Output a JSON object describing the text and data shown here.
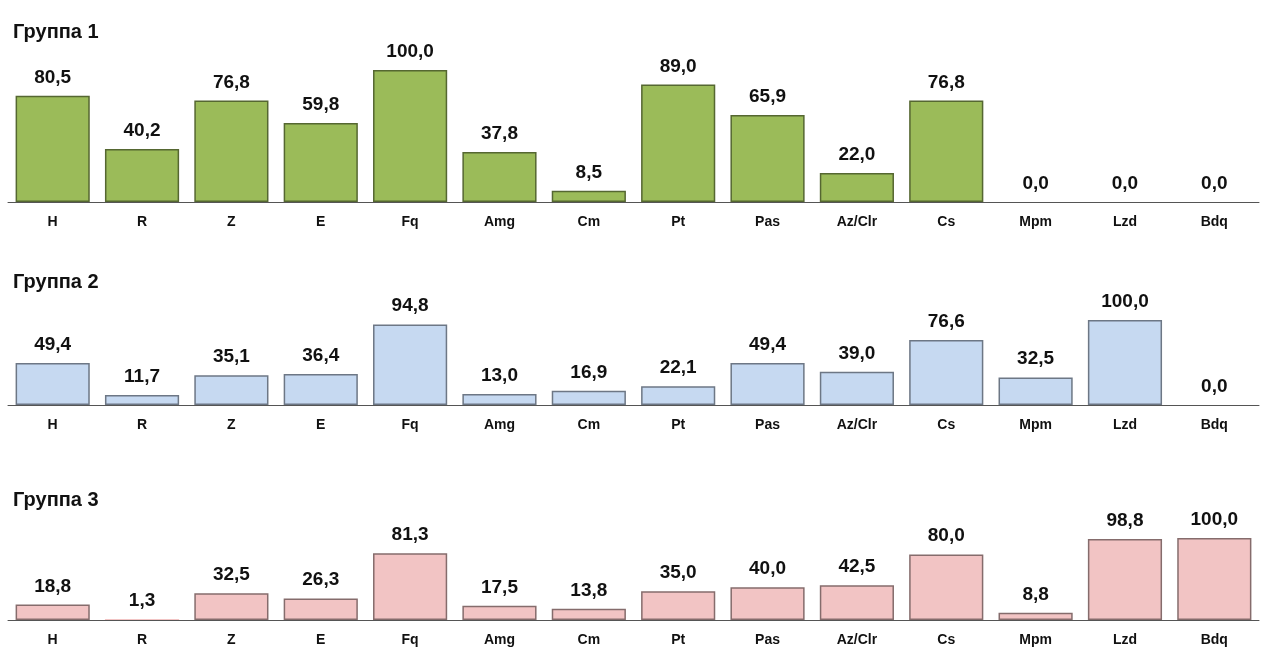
{
  "chart_data": [
    {
      "type": "bar",
      "title": "Группа 1",
      "categories": [
        "H",
        "R",
        "Z",
        "E",
        "Fq",
        "Amg",
        "Cm",
        "Pt",
        "Pas",
        "Az/Clr",
        "Cs",
        "Mpm",
        "Lzd",
        "Bdq"
      ],
      "values": [
        80.5,
        40.2,
        76.8,
        59.8,
        100.0,
        37.8,
        8.5,
        89.0,
        65.9,
        22.0,
        76.8,
        0.0,
        0.0,
        0.0
      ],
      "value_labels": [
        "80,5",
        "40,2",
        "76,8",
        "59,8",
        "100,0",
        "37,8",
        "8,5",
        "89,0",
        "65,9",
        "22,0",
        "76,8",
        "0,0",
        "0,0",
        "0,0"
      ],
      "color": "#9bbb59"
    },
    {
      "type": "bar",
      "title": "Группа 2",
      "categories": [
        "H",
        "R",
        "Z",
        "E",
        "Fq",
        "Amg",
        "Cm",
        "Pt",
        "Pas",
        "Az/Clr",
        "Cs",
        "Mpm",
        "Lzd",
        "Bdq"
      ],
      "values": [
        49.4,
        11.7,
        35.1,
        36.4,
        94.8,
        13.0,
        16.9,
        22.1,
        49.4,
        39.0,
        76.6,
        32.5,
        100.0,
        0.0
      ],
      "value_labels": [
        "49,4",
        "11,7",
        "35,1",
        "36,4",
        "94,8",
        "13,0",
        "16,9",
        "22,1",
        "49,4",
        "39,0",
        "76,6",
        "32,5",
        "100,0",
        "0,0"
      ],
      "color": "#c6d9f1"
    },
    {
      "type": "bar",
      "title": "Группа 3",
      "categories": [
        "H",
        "R",
        "Z",
        "E",
        "Fq",
        "Amg",
        "Cm",
        "Pt",
        "Pas",
        "Az/Clr",
        "Cs",
        "Mpm",
        "Lzd",
        "Bdq"
      ],
      "values": [
        18.8,
        1.3,
        32.5,
        26.3,
        81.3,
        17.5,
        13.8,
        35.0,
        40.0,
        42.5,
        80.0,
        8.8,
        98.8,
        100.0
      ],
      "value_labels": [
        "18,8",
        "1,3",
        "32,5",
        "26,3",
        "81,3",
        "17,5",
        "13,8",
        "35,0",
        "40,0",
        "42,5",
        "80,0",
        "8,8",
        "98,8",
        "100,0"
      ],
      "color": "#f2c4c4"
    }
  ]
}
